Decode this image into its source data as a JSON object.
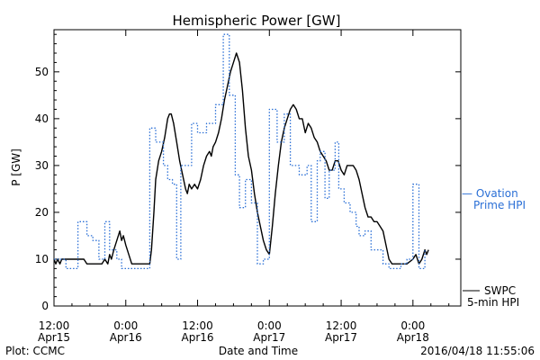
{
  "chart_data": {
    "type": "line",
    "title": "Hemispheric Power [GW]",
    "ylabel": "P [GW]",
    "xlabel": "Date and Time",
    "ylim": [
      0,
      59
    ],
    "xlim": [
      0,
      68
    ],
    "x_unit": "hours since 2016/04/15 12:00",
    "y_ticks": [
      0,
      10,
      20,
      30,
      40,
      50
    ],
    "x_ticks": [
      {
        "x": 0,
        "time": "12:00",
        "date": "Apr15"
      },
      {
        "x": 12,
        "time": "0:00",
        "date": "Apr16"
      },
      {
        "x": 24,
        "time": "12:00",
        "date": "Apr16"
      },
      {
        "x": 36,
        "time": "0:00",
        "date": "Apr17"
      },
      {
        "x": 48,
        "time": "12:00",
        "date": "Apr17"
      },
      {
        "x": 60,
        "time": "0:00",
        "date": "Apr18"
      }
    ],
    "series": [
      {
        "name": "SWPC 5-min HPI",
        "color": "#000000",
        "style": "solid",
        "points": [
          [
            0,
            10
          ],
          [
            0.3,
            9
          ],
          [
            0.6,
            10
          ],
          [
            1,
            9
          ],
          [
            1.3,
            10
          ],
          [
            2,
            10
          ],
          [
            3,
            10
          ],
          [
            4,
            10
          ],
          [
            4.5,
            10
          ],
          [
            5,
            10
          ],
          [
            5.5,
            9
          ],
          [
            6,
            9
          ],
          [
            7,
            9
          ],
          [
            8,
            9
          ],
          [
            8.5,
            10
          ],
          [
            9,
            9
          ],
          [
            9.3,
            11
          ],
          [
            9.6,
            10
          ],
          [
            10,
            12
          ],
          [
            10.5,
            14
          ],
          [
            11,
            16
          ],
          [
            11.3,
            14
          ],
          [
            11.6,
            15
          ],
          [
            12,
            13
          ],
          [
            12.5,
            11
          ],
          [
            13,
            9
          ],
          [
            13.5,
            9
          ],
          [
            14,
            9
          ],
          [
            15,
            9
          ],
          [
            15.5,
            9
          ],
          [
            16,
            9
          ],
          [
            16.3,
            12
          ],
          [
            16.7,
            20
          ],
          [
            17,
            27
          ],
          [
            17.5,
            31
          ],
          [
            18,
            33
          ],
          [
            18.5,
            36
          ],
          [
            19,
            40
          ],
          [
            19.3,
            41
          ],
          [
            19.6,
            41
          ],
          [
            20,
            39
          ],
          [
            20.5,
            35
          ],
          [
            21,
            31
          ],
          [
            21.5,
            28
          ],
          [
            22,
            25
          ],
          [
            22.3,
            24
          ],
          [
            22.6,
            26
          ],
          [
            23,
            25
          ],
          [
            23.5,
            26
          ],
          [
            24,
            25
          ],
          [
            24.5,
            27
          ],
          [
            25,
            30
          ],
          [
            25.5,
            32
          ],
          [
            26,
            33
          ],
          [
            26.3,
            32
          ],
          [
            26.6,
            34
          ],
          [
            27,
            35
          ],
          [
            27.5,
            37
          ],
          [
            28,
            40
          ],
          [
            28.5,
            44
          ],
          [
            29,
            47
          ],
          [
            29.5,
            50
          ],
          [
            30,
            52
          ],
          [
            30.5,
            54
          ],
          [
            31,
            52
          ],
          [
            31.5,
            46
          ],
          [
            32,
            38
          ],
          [
            32.5,
            32
          ],
          [
            33,
            29
          ],
          [
            33.5,
            24
          ],
          [
            34,
            20
          ],
          [
            34.5,
            17
          ],
          [
            35,
            14
          ],
          [
            35.5,
            12
          ],
          [
            36,
            11
          ],
          [
            36.5,
            17
          ],
          [
            37,
            24
          ],
          [
            37.5,
            30
          ],
          [
            38,
            35
          ],
          [
            38.5,
            38
          ],
          [
            39,
            40
          ],
          [
            39.5,
            42
          ],
          [
            40,
            43
          ],
          [
            40.5,
            42
          ],
          [
            41,
            40
          ],
          [
            41.5,
            40
          ],
          [
            42,
            37
          ],
          [
            42.5,
            39
          ],
          [
            43,
            38
          ],
          [
            43.5,
            36
          ],
          [
            44,
            35
          ],
          [
            44.5,
            33
          ],
          [
            45,
            32
          ],
          [
            45.5,
            31
          ],
          [
            46,
            29
          ],
          [
            46.5,
            29
          ],
          [
            47,
            31
          ],
          [
            47.5,
            31
          ],
          [
            48,
            29
          ],
          [
            48.5,
            28
          ],
          [
            49,
            30
          ],
          [
            49.5,
            30
          ],
          [
            50,
            30
          ],
          [
            50.5,
            29
          ],
          [
            51,
            27
          ],
          [
            51.5,
            24
          ],
          [
            52,
            21
          ],
          [
            52.5,
            19
          ],
          [
            53,
            19
          ],
          [
            53.5,
            18
          ],
          [
            54,
            18
          ],
          [
            54.5,
            17
          ],
          [
            55,
            16
          ],
          [
            55.5,
            13
          ],
          [
            56,
            10
          ],
          [
            56.5,
            9
          ],
          [
            57,
            9
          ],
          [
            58,
            9
          ],
          [
            59,
            9
          ],
          [
            60,
            10
          ],
          [
            60.5,
            11
          ],
          [
            61,
            9
          ],
          [
            61.5,
            10
          ],
          [
            62,
            12
          ],
          [
            62.3,
            11
          ],
          [
            62.6,
            12
          ]
        ]
      },
      {
        "name": "Ovation Prime HPI",
        "color": "#2a6fd6",
        "style": "dotted",
        "points": [
          [
            0,
            10
          ],
          [
            2,
            10
          ],
          [
            2,
            8
          ],
          [
            4,
            8
          ],
          [
            4,
            18
          ],
          [
            5.5,
            18
          ],
          [
            5.5,
            15
          ],
          [
            6.5,
            15
          ],
          [
            6.5,
            14
          ],
          [
            7.5,
            14
          ],
          [
            7.5,
            10
          ],
          [
            8.5,
            10
          ],
          [
            8.5,
            18
          ],
          [
            9.3,
            18
          ],
          [
            9.3,
            12
          ],
          [
            10.5,
            12
          ],
          [
            10.5,
            10
          ],
          [
            11.3,
            10
          ],
          [
            11.3,
            8
          ],
          [
            16,
            8
          ],
          [
            16,
            38
          ],
          [
            17,
            38
          ],
          [
            17,
            35
          ],
          [
            18.3,
            35
          ],
          [
            18.3,
            30
          ],
          [
            19,
            30
          ],
          [
            19,
            27
          ],
          [
            19.8,
            27
          ],
          [
            19.8,
            26
          ],
          [
            20.5,
            26
          ],
          [
            20.5,
            10
          ],
          [
            21.2,
            10
          ],
          [
            21.2,
            30
          ],
          [
            23,
            30
          ],
          [
            23,
            39
          ],
          [
            24,
            39
          ],
          [
            24,
            37
          ],
          [
            25.5,
            37
          ],
          [
            25.5,
            39
          ],
          [
            27,
            39
          ],
          [
            27,
            43
          ],
          [
            28.3,
            43
          ],
          [
            28.3,
            58
          ],
          [
            29.3,
            58
          ],
          [
            29.3,
            45
          ],
          [
            30.3,
            45
          ],
          [
            30.3,
            28
          ],
          [
            31,
            28
          ],
          [
            31,
            21
          ],
          [
            32,
            21
          ],
          [
            32,
            27
          ],
          [
            33,
            27
          ],
          [
            33,
            22
          ],
          [
            34,
            22
          ],
          [
            34,
            9
          ],
          [
            35,
            9
          ],
          [
            35,
            10
          ],
          [
            36,
            10
          ],
          [
            36,
            42
          ],
          [
            37.3,
            42
          ],
          [
            37.3,
            35
          ],
          [
            38.5,
            35
          ],
          [
            38.5,
            41
          ],
          [
            39.5,
            41
          ],
          [
            39.5,
            30
          ],
          [
            41,
            30
          ],
          [
            41,
            28
          ],
          [
            42.3,
            28
          ],
          [
            42.3,
            30
          ],
          [
            43,
            30
          ],
          [
            43,
            18
          ],
          [
            44,
            18
          ],
          [
            44,
            31
          ],
          [
            44.5,
            31
          ],
          [
            44.5,
            33
          ],
          [
            45.3,
            33
          ],
          [
            45.3,
            23
          ],
          [
            46,
            23
          ],
          [
            46,
            29
          ],
          [
            47,
            29
          ],
          [
            47,
            35
          ],
          [
            47.6,
            35
          ],
          [
            47.6,
            25
          ],
          [
            48.5,
            25
          ],
          [
            48.5,
            22
          ],
          [
            49.5,
            22
          ],
          [
            49.5,
            20
          ],
          [
            50.5,
            20
          ],
          [
            50.5,
            17
          ],
          [
            51,
            17
          ],
          [
            51,
            15
          ],
          [
            52,
            15
          ],
          [
            52,
            16
          ],
          [
            53,
            16
          ],
          [
            53,
            12
          ],
          [
            55,
            12
          ],
          [
            55,
            9
          ],
          [
            56,
            9
          ],
          [
            56,
            8
          ],
          [
            58,
            8
          ],
          [
            58,
            9
          ],
          [
            59,
            9
          ],
          [
            59,
            10
          ],
          [
            60,
            10
          ],
          [
            60,
            26
          ],
          [
            61,
            26
          ],
          [
            61,
            8
          ],
          [
            62,
            8
          ],
          [
            62,
            12
          ]
        ]
      }
    ],
    "legend": {
      "placement": "right",
      "ovation_line1": "— Ovation",
      "ovation_line2": "Prime HPI",
      "swpc_line1": "SWPC",
      "swpc_line2": "5-min HPI"
    },
    "footer": {
      "left": "Plot: CCMC",
      "right": "2016/04/18 11:55:06"
    }
  }
}
